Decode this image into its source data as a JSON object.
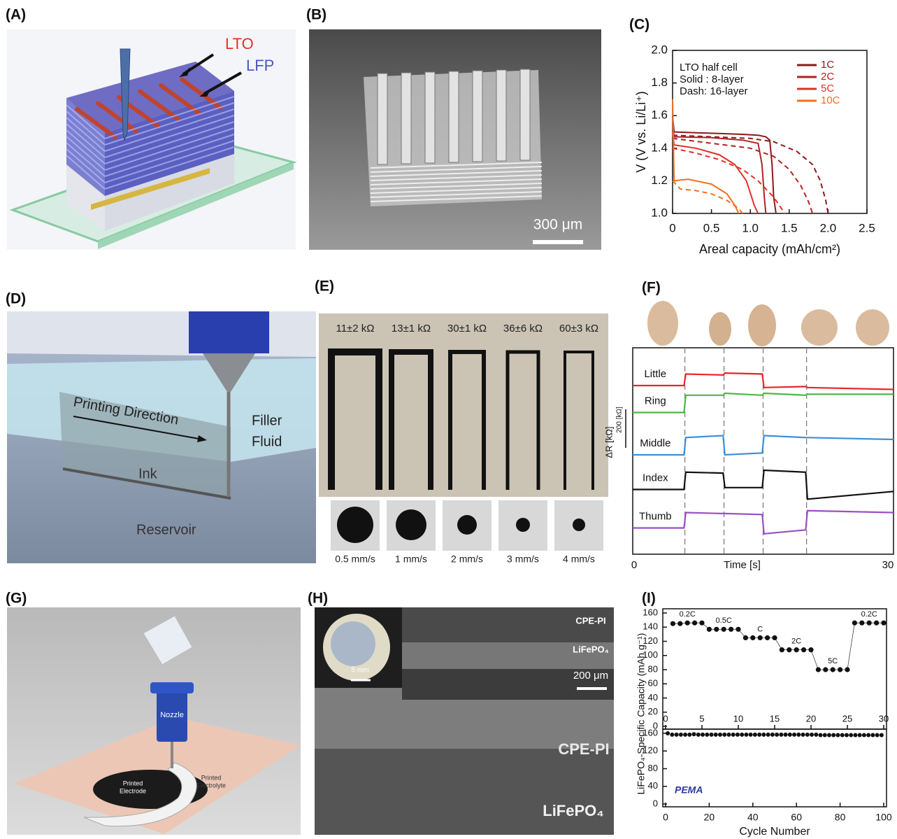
{
  "panels": {
    "A": {
      "label": "(A)",
      "lto": "LTO",
      "lfp": "LFP"
    },
    "B": {
      "label": "(B)",
      "scale": "300 μm"
    },
    "C": {
      "label": "(C)"
    },
    "D": {
      "label": "(D)",
      "direction": "Printing Direction",
      "filler": [
        "Filler",
        "Fluid"
      ],
      "ink": "Ink",
      "reservoir": "Reservoir"
    },
    "E": {
      "label": "(E)",
      "resistances": [
        "11±2 kΩ",
        "13±1 kΩ",
        "30±1 kΩ",
        "36±6 kΩ",
        "60±3 kΩ"
      ],
      "speeds": [
        "0.5 mm/s",
        "1 mm/s",
        "2 mm/s",
        "3 mm/s",
        "4 mm/s"
      ]
    },
    "F": {
      "label": "(F)"
    },
    "G": {
      "label": "(G)",
      "nozzle": "Nozzle",
      "electrode": [
        "Printed",
        "Electrode"
      ],
      "electrolyte": [
        "Printed",
        "Electrolyte"
      ]
    },
    "H": {
      "label": "(H)",
      "inset_top": "CPE-PI",
      "inset_mid": "LiFePO₄",
      "scale_inset": "5 mm",
      "scale": "200 μm",
      "cpe": "CPE-PI",
      "lfp": "LiFePO₄"
    },
    "I": {
      "label": "(I)"
    }
  },
  "chart_data": [
    {
      "type": "line",
      "annotations": [
        "LTO half cell",
        "Solid :  8-layer",
        "Dash: 16-layer"
      ],
      "xlabel": "Areal capacity (mAh/cm²)",
      "ylabel": "V (V vs. Li/Li⁺)",
      "xlim": [
        0,
        2.5
      ],
      "ylim": [
        1,
        2
      ],
      "xticks": [
        0,
        0.5,
        {
          "value": 1,
          "label": "1.0"
        },
        1.5,
        {
          "value": 2,
          "label": "2.0"
        },
        2.5
      ],
      "yticks": [
        {
          "value": 1,
          "label": "1.0"
        },
        1.2,
        1.4,
        1.6,
        1.8,
        {
          "value": 2,
          "label": "2.0"
        }
      ],
      "series": [
        {
          "name": "1C",
          "color": "#8b1a1a",
          "solid": {
            "x": [
              0,
              0.02,
              0.3,
              0.6,
              0.9,
              1.1,
              1.2,
              1.25,
              1.28,
              1.3,
              1.33
            ],
            "values": [
              1.6,
              1.5,
              1.495,
              1.49,
              1.485,
              1.48,
              1.47,
              1.45,
              1.3,
              1.1,
              1.0
            ]
          },
          "dashed": {
            "x": [
              0,
              0.5,
              1.0,
              1.3,
              1.6,
              1.8,
              1.9,
              1.97,
              2.0
            ],
            "values": [
              1.48,
              1.47,
              1.46,
              1.44,
              1.38,
              1.3,
              1.2,
              1.08,
              1.0
            ]
          }
        },
        {
          "name": "2C",
          "color": "#b22222",
          "solid": {
            "x": [
              0,
              0.02,
              0.5,
              0.9,
              1.1,
              1.15,
              1.18,
              1.2
            ],
            "values": [
              1.55,
              1.47,
              1.465,
              1.45,
              1.43,
              1.3,
              1.1,
              1.0
            ]
          },
          "dashed": {
            "x": [
              0,
              0.5,
              1.0,
              1.3,
              1.5,
              1.65,
              1.75,
              1.8
            ],
            "values": [
              1.46,
              1.43,
              1.4,
              1.35,
              1.27,
              1.17,
              1.07,
              1.0
            ]
          }
        },
        {
          "name": "5C",
          "color": "#e0302a",
          "solid": {
            "x": [
              0,
              0.02,
              0.3,
              0.6,
              0.8,
              0.95,
              1.05,
              1.1
            ],
            "values": [
              1.5,
              1.42,
              1.4,
              1.36,
              1.3,
              1.2,
              1.05,
              1.0
            ]
          },
          "dashed": {
            "x": [
              0,
              0.3,
              0.6,
              0.9,
              1.1,
              1.3,
              1.4,
              1.45
            ],
            "values": [
              1.4,
              1.37,
              1.33,
              1.27,
              1.2,
              1.1,
              1.03,
              1.0
            ]
          }
        },
        {
          "name": "10C",
          "color": "#f07020",
          "solid": {
            "x": [
              0,
              0.02,
              0.2,
              0.5,
              0.7,
              0.8,
              0.85
            ],
            "values": [
              1.7,
              1.2,
              1.21,
              1.18,
              1.12,
              1.05,
              1.0
            ]
          },
          "dashed": {
            "x": [
              0,
              0.1,
              0.3,
              0.5,
              0.7,
              0.85,
              0.9
            ],
            "values": [
              1.2,
              1.15,
              1.14,
              1.12,
              1.08,
              1.03,
              1.0
            ]
          }
        }
      ]
    },
    {
      "type": "line",
      "xlabel": "Time [s]",
      "ylabel": "ΔR [kΩ]",
      "scale_label": "200 [kΩ]",
      "scale_bar": 200,
      "xlim": [
        0,
        30
      ],
      "xticks": [
        0,
        30
      ],
      "ylim": [
        0,
        1000
      ],
      "markers": [
        6,
        10.5,
        15,
        20
      ],
      "x": [
        0,
        5.9,
        6.1,
        10.4,
        10.6,
        14.9,
        15.1,
        19.9,
        20.1,
        30
      ],
      "series": [
        {
          "name": "Little",
          "color": "#e8262b",
          "values": [
            840,
            840,
            900,
            895,
            905,
            900,
            830,
            835,
            830,
            820
          ]
        },
        {
          "name": "Ring",
          "color": "#4cb848",
          "values": [
            700,
            700,
            790,
            790,
            800,
            790,
            800,
            790,
            795,
            795
          ]
        },
        {
          "name": "Middle",
          "color": "#3d8fd9",
          "values": [
            480,
            480,
            570,
            580,
            480,
            490,
            580,
            570,
            570,
            560
          ]
        },
        {
          "name": "Index",
          "color": "#111111",
          "values": [
            300,
            300,
            390,
            385,
            310,
            310,
            400,
            390,
            250,
            290
          ]
        },
        {
          "name": "Thumb",
          "color": "#9b4fc4",
          "values": [
            100,
            100,
            180,
            175,
            175,
            170,
            70,
            90,
            190,
            180
          ]
        }
      ]
    },
    {
      "type": "scatter",
      "ylabel": "LiFePO₄-Specific Capacity (mAh g⁻¹)",
      "color": "#111111",
      "rate_labels": [
        "0.2C",
        "0.5C",
        "C",
        "2C",
        "5C",
        "0.2C"
      ],
      "xlim": [
        0,
        30
      ],
      "xticks": [
        0,
        5,
        10,
        15,
        20,
        25,
        30
      ],
      "ylim": [
        0,
        160
      ],
      "yticks": [
        0,
        20,
        40,
        60,
        80,
        100,
        120,
        140,
        160
      ],
      "x": [
        1,
        2,
        3,
        4,
        5,
        6,
        7,
        8,
        9,
        10,
        11,
        12,
        13,
        14,
        15,
        16,
        17,
        18,
        19,
        20,
        21,
        22,
        23,
        24,
        25,
        26,
        27,
        28,
        29,
        30
      ],
      "values": [
        145,
        145,
        146,
        146,
        146,
        137,
        137,
        137,
        137,
        137,
        125,
        125,
        125,
        125,
        125,
        108,
        108,
        108,
        108,
        108,
        80,
        80,
        80,
        80,
        80,
        146,
        146,
        146,
        146,
        146
      ]
    },
    {
      "type": "scatter",
      "label": "PEMA",
      "xlabel": "Cycle Number",
      "color": "#111111",
      "xlim": [
        0,
        100
      ],
      "xticks": [
        0,
        20,
        40,
        60,
        80,
        100
      ],
      "ylim": [
        0,
        160
      ],
      "yticks": [
        0,
        40,
        80,
        120,
        160
      ],
      "x": [
        1,
        3,
        5,
        7,
        9,
        11,
        13,
        15,
        17,
        19,
        21,
        23,
        25,
        27,
        29,
        31,
        33,
        35,
        37,
        39,
        41,
        43,
        45,
        47,
        49,
        51,
        53,
        55,
        57,
        59,
        61,
        63,
        65,
        67,
        69,
        71,
        73,
        75,
        77,
        79,
        81,
        83,
        85,
        87,
        89,
        91,
        93,
        95,
        97,
        99
      ],
      "values": [
        160,
        157,
        157,
        157,
        157,
        157,
        158,
        157,
        157,
        157,
        157,
        157,
        157,
        157,
        157,
        157,
        157,
        157,
        157,
        157,
        157,
        157,
        157,
        157,
        157,
        157,
        157,
        157,
        157,
        157,
        157,
        157,
        157,
        157,
        157,
        156,
        156,
        156,
        156,
        156,
        156,
        156,
        156,
        156,
        156,
        156,
        156,
        156,
        156,
        156
      ]
    }
  ]
}
